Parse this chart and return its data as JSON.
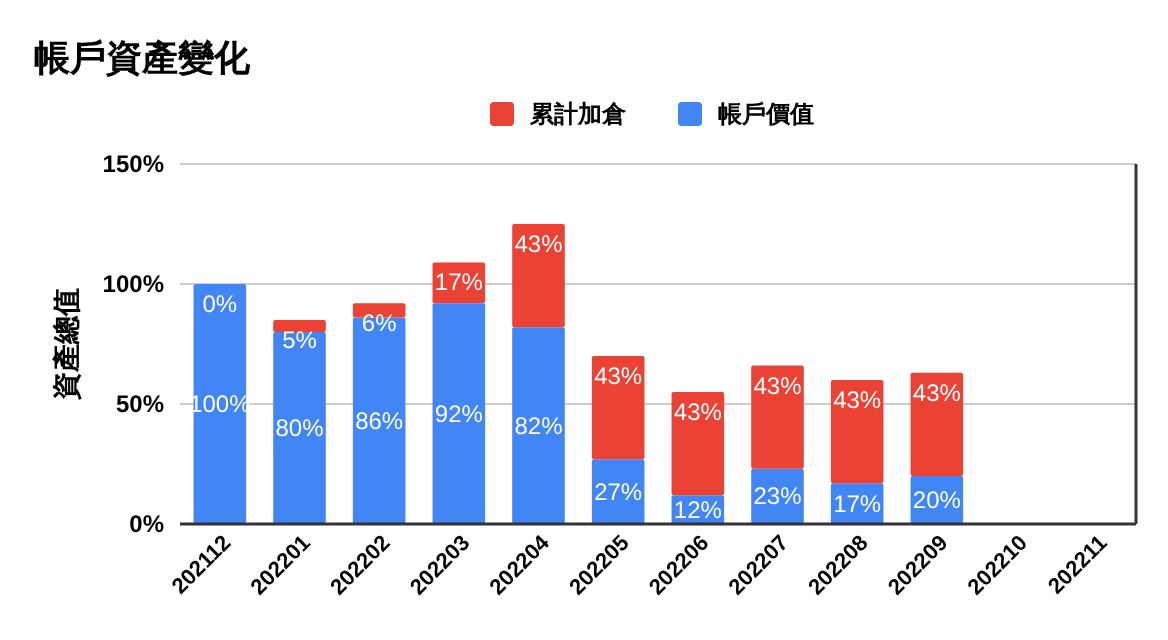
{
  "chart_data": {
    "type": "bar",
    "title": "帳戶資產變化",
    "ylabel": "資產總值",
    "stacked": true,
    "legend": "top",
    "grid": "y",
    "categories": [
      "202112",
      "202201",
      "202202",
      "202203",
      "202204",
      "202205",
      "202206",
      "202207",
      "202208",
      "202209",
      "202210",
      "202211"
    ],
    "series": [
      {
        "name": "帳戶價值",
        "color": "#4285f4",
        "values": [
          100,
          80,
          86,
          92,
          82,
          27,
          12,
          23,
          17,
          20,
          null,
          null
        ],
        "value_labels": [
          "100%",
          "80%",
          "86%",
          "92%",
          "82%",
          "27%",
          "12%",
          "23%",
          "17%",
          "20%",
          null,
          null
        ]
      },
      {
        "name": "累計加倉",
        "color": "#ea4335",
        "values": [
          0,
          5,
          6,
          17,
          43,
          43,
          43,
          43,
          43,
          43,
          null,
          null
        ],
        "value_labels": [
          "0%",
          "5%",
          "6%",
          "17%",
          "43%",
          "43%",
          "43%",
          "43%",
          "43%",
          "43%",
          null,
          null
        ]
      }
    ],
    "ylim": [
      0,
      150
    ],
    "yticks": [
      {
        "value": 0,
        "label": "0%"
      },
      {
        "value": 50,
        "label": "50%"
      },
      {
        "value": 100,
        "label": "100%"
      },
      {
        "value": 150,
        "label": "150%"
      }
    ]
  }
}
